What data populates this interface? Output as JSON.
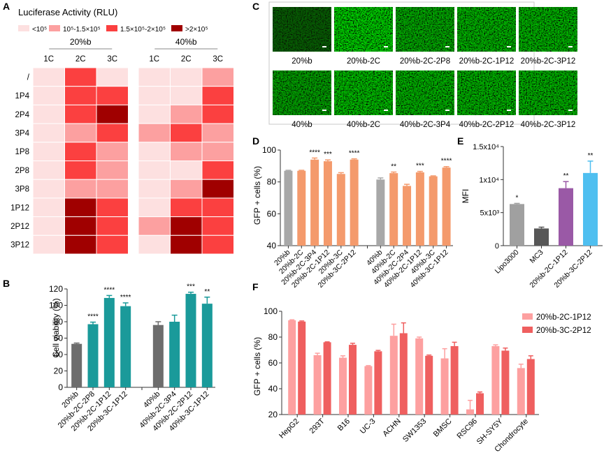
{
  "colors": {
    "heat": [
      "#fde0e0",
      "#fca0a0",
      "#fb4040",
      "#a00000"
    ],
    "gray": "#6d6d6d",
    "teal": "#1a9a9a",
    "lightgray": "#a8a8a8",
    "salmon": "#f49a6c",
    "e_colors": [
      "#a0a0a0",
      "#575757",
      "#9a59a6",
      "#4fbff0"
    ],
    "f_colors": [
      "#fda0a0",
      "#ef5f5f"
    ],
    "microscopy_green": "#3fc62a"
  },
  "chart_data": [
    {
      "panel": "A",
      "type": "heatmap",
      "title": "Luciferase Activity (RLU)",
      "legend": [
        "<10⁵",
        "10⁵-1.5×10⁵",
        "1.5×10⁵-2×10⁵",
        ">2×10⁵"
      ],
      "groups": [
        "20%b",
        "40%b"
      ],
      "columns": [
        "1C",
        "2C",
        "3C"
      ],
      "rows": [
        "/",
        "1P4",
        "2P4",
        "3P4",
        "1P8",
        "2P8",
        "3P8",
        "1P12",
        "2P12",
        "3P12"
      ],
      "levels_20b": [
        [
          0,
          2,
          0
        ],
        [
          0,
          2,
          2
        ],
        [
          0,
          2,
          3
        ],
        [
          0,
          1,
          2
        ],
        [
          0,
          2,
          1
        ],
        [
          0,
          2,
          1
        ],
        [
          0,
          1,
          1
        ],
        [
          0,
          3,
          2
        ],
        [
          0,
          3,
          2
        ],
        [
          0,
          3,
          2
        ]
      ],
      "levels_40b": [
        [
          0,
          0,
          1
        ],
        [
          0,
          0,
          2
        ],
        [
          0,
          1,
          2
        ],
        [
          1,
          2,
          1
        ],
        [
          0,
          1,
          1
        ],
        [
          0,
          0,
          2
        ],
        [
          0,
          1,
          3
        ],
        [
          0,
          2,
          2
        ],
        [
          1,
          3,
          2
        ],
        [
          0,
          3,
          2
        ]
      ]
    },
    {
      "panel": "B",
      "type": "bar",
      "ylabel": "Cell viability (%)",
      "ylim": [
        0,
        120
      ],
      "yticks": [
        0,
        20,
        40,
        60,
        80,
        100,
        120
      ],
      "categories": [
        "20%b",
        "20%b-2C-2P8",
        "20%b-2C-1P12",
        "20%b-3C-1P12",
        "",
        "40%b",
        "40%b-2C-3P4",
        "40%b-2C-2P12",
        "40%b-3C-1P12"
      ],
      "values": [
        53,
        77,
        109,
        99,
        null,
        76,
        80,
        114,
        102
      ],
      "errors": [
        1,
        2.5,
        3,
        4,
        null,
        4,
        8,
        2,
        8
      ],
      "kind": [
        "gray",
        "teal",
        "teal",
        "teal",
        null,
        "gray",
        "teal",
        "teal",
        "teal"
      ],
      "significance": [
        "",
        "****",
        "****",
        "****",
        "",
        "",
        "",
        "***",
        "**"
      ]
    },
    {
      "panel": "C",
      "type": "image-grid",
      "labels": [
        "20%b",
        "20%b-2C",
        "20%b-2C-2P8",
        "20%b-2C-1P12",
        "20%b-2C-3P12",
        "40%b",
        "40%b-2C",
        "40%b-2C-3P4",
        "40%b-2C-2P12",
        "40%b-2C-3P12"
      ],
      "intensity": [
        0.35,
        0.95,
        0.75,
        0.8,
        0.8,
        0.7,
        0.85,
        0.8,
        0.8,
        0.8
      ]
    },
    {
      "panel": "D",
      "type": "bar",
      "ylabel": "GFP + cells (%)",
      "ylim": [
        40,
        100
      ],
      "yticks": [
        40,
        60,
        80,
        100
      ],
      "categories": [
        "20%b",
        "20%b-2C",
        "20%b-2C-3P4",
        "20%b-2C-1P12",
        "20%b-3C",
        "20%b-3C-2P12",
        "",
        "40%b",
        "40%b-2C",
        "40%b-2C-2P4",
        "40%b-2C-1P12",
        "40%b-3C",
        "40%b-3C-1P12"
      ],
      "values": [
        87,
        87,
        94,
        93,
        85,
        94,
        null,
        81.5,
        85.5,
        77.5,
        86,
        83.5,
        89
      ],
      "errors": [
        0.3,
        0.3,
        1,
        0.8,
        0.8,
        0.5,
        null,
        1,
        0.7,
        1,
        0.6,
        0.3,
        0.6
      ],
      "kind": [
        "lightgray",
        "salmon",
        "salmon",
        "salmon",
        "salmon",
        "salmon",
        null,
        "lightgray",
        "salmon",
        "salmon",
        "salmon",
        "salmon",
        "salmon"
      ],
      "significance": [
        "",
        "",
        "****",
        "***",
        "",
        "****",
        "",
        "",
        "**",
        "",
        "***",
        "",
        "****"
      ]
    },
    {
      "panel": "E",
      "type": "bar",
      "ylabel": "MFI",
      "ylim": [
        0,
        15000
      ],
      "yticks": [
        0,
        5000,
        10000,
        15000
      ],
      "ytick_labels": [
        "0",
        "5x10³",
        "1x10⁴",
        "1.5x10⁴"
      ],
      "categories": [
        "Lipo3000",
        "MC3",
        "20%b-2C-1P12",
        "20%b-3C-2P12"
      ],
      "values": [
        6300,
        2600,
        8700,
        11000
      ],
      "errors": [
        100,
        200,
        1000,
        1800
      ],
      "significance": [
        "*",
        "",
        "**",
        "**"
      ]
    },
    {
      "panel": "F",
      "type": "bar",
      "ylabel": "GFP + cells (%)",
      "ylim": [
        20,
        100
      ],
      "yticks": [
        20,
        40,
        60,
        80,
        100
      ],
      "categories": [
        "HepG2",
        "293T",
        "B16",
        "UC-3",
        "ACHN",
        "SW1353",
        "BMSC",
        "RSC96",
        "SH-SY5Y",
        "Chondrocyte"
      ],
      "series": [
        {
          "name": "20%b-2C-1P12",
          "values": [
            93,
            66,
            64,
            57.5,
            81,
            79,
            63.5,
            24,
            73,
            56
          ],
          "errors": [
            0.4,
            1.5,
            1.5,
            0.4,
            9,
            1,
            7.5,
            7,
            1,
            3
          ]
        },
        {
          "name": "20%b-3C-2P12",
          "values": [
            92,
            76,
            74,
            69,
            83,
            65.5,
            73,
            36.5,
            69.5,
            63
          ],
          "errors": [
            0.5,
            0.3,
            1.2,
            0.7,
            8,
            0.6,
            3,
            1,
            2,
            2.5
          ]
        }
      ],
      "legend": "top-right"
    }
  ],
  "panel_labels": [
    "A",
    "B",
    "C",
    "D",
    "E",
    "F"
  ]
}
